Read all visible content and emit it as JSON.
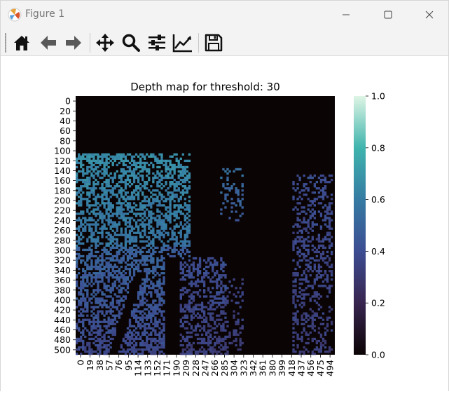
{
  "window": {
    "title": "Figure 1"
  },
  "toolbar": {
    "buttons": [
      {
        "name": "home-icon",
        "label": "Home"
      },
      {
        "name": "back-arrow-icon",
        "label": "Back"
      },
      {
        "name": "forward-arrow-icon",
        "label": "Forward"
      },
      {
        "name": "pan-icon",
        "label": "Pan"
      },
      {
        "name": "zoom-icon",
        "label": "Zoom"
      },
      {
        "name": "subplots-icon",
        "label": "Configure subplots"
      },
      {
        "name": "edit-axes-icon",
        "label": "Edit axis"
      },
      {
        "name": "save-icon",
        "label": "Save"
      }
    ]
  },
  "chart_data": {
    "type": "heatmap",
    "title": "Depth map for threshold: 30",
    "y_ticks": [
      "0",
      "20",
      "40",
      "60",
      "80",
      "100",
      "120",
      "140",
      "160",
      "180",
      "200",
      "220",
      "240",
      "260",
      "280",
      "300",
      "320",
      "340",
      "360",
      "380",
      "400",
      "420",
      "440",
      "460",
      "480",
      "500"
    ],
    "x_ticks": [
      "0",
      "19",
      "38",
      "57",
      "76",
      "95",
      "114",
      "133",
      "152",
      "171",
      "190",
      "209",
      "228",
      "247",
      "266",
      "285",
      "304",
      "323",
      "342",
      "361",
      "380",
      "399",
      "418",
      "437",
      "456",
      "475",
      "494"
    ],
    "colorbar": {
      "ticks": [
        "0.0",
        "0.2",
        "0.4",
        "0.6",
        "0.8",
        "1.0"
      ],
      "range": [
        0,
        1
      ]
    },
    "colors": {
      "background": "#0b0405",
      "low": "#3b2d5e",
      "high": "#dcf3e6"
    }
  }
}
